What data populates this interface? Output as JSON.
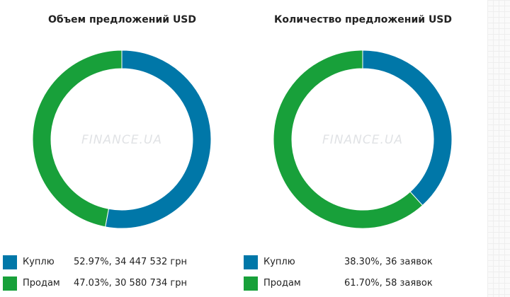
{
  "colors": {
    "buy": "#0077a8",
    "sell": "#18a03a",
    "watermark": "#c8ccd0"
  },
  "watermark_text": "FINANCE.UA",
  "chart_data": [
    {
      "type": "pie",
      "donut": true,
      "title": "Объем предложений USD",
      "series": [
        {
          "name": "Куплю",
          "percent": 52.97,
          "amount": 34447532,
          "unit": "грн",
          "label": "52.97%, 34 447 532 грн",
          "color": "#0077a8"
        },
        {
          "name": "Продам",
          "percent": 47.03,
          "amount": 30580734,
          "unit": "грн",
          "label": "47.03%, 30 580 734 грн",
          "color": "#18a03a"
        }
      ]
    },
    {
      "type": "pie",
      "donut": true,
      "title": "Количество предложений USD",
      "series": [
        {
          "name": "Куплю",
          "percent": 38.3,
          "amount": 36,
          "unit": "заявок",
          "label": "38.30%, 36 заявок",
          "color": "#0077a8"
        },
        {
          "name": "Продам",
          "percent": 61.7,
          "amount": 58,
          "unit": "заявок",
          "label": "61.70%, 58 заявок",
          "color": "#18a03a"
        }
      ]
    }
  ]
}
